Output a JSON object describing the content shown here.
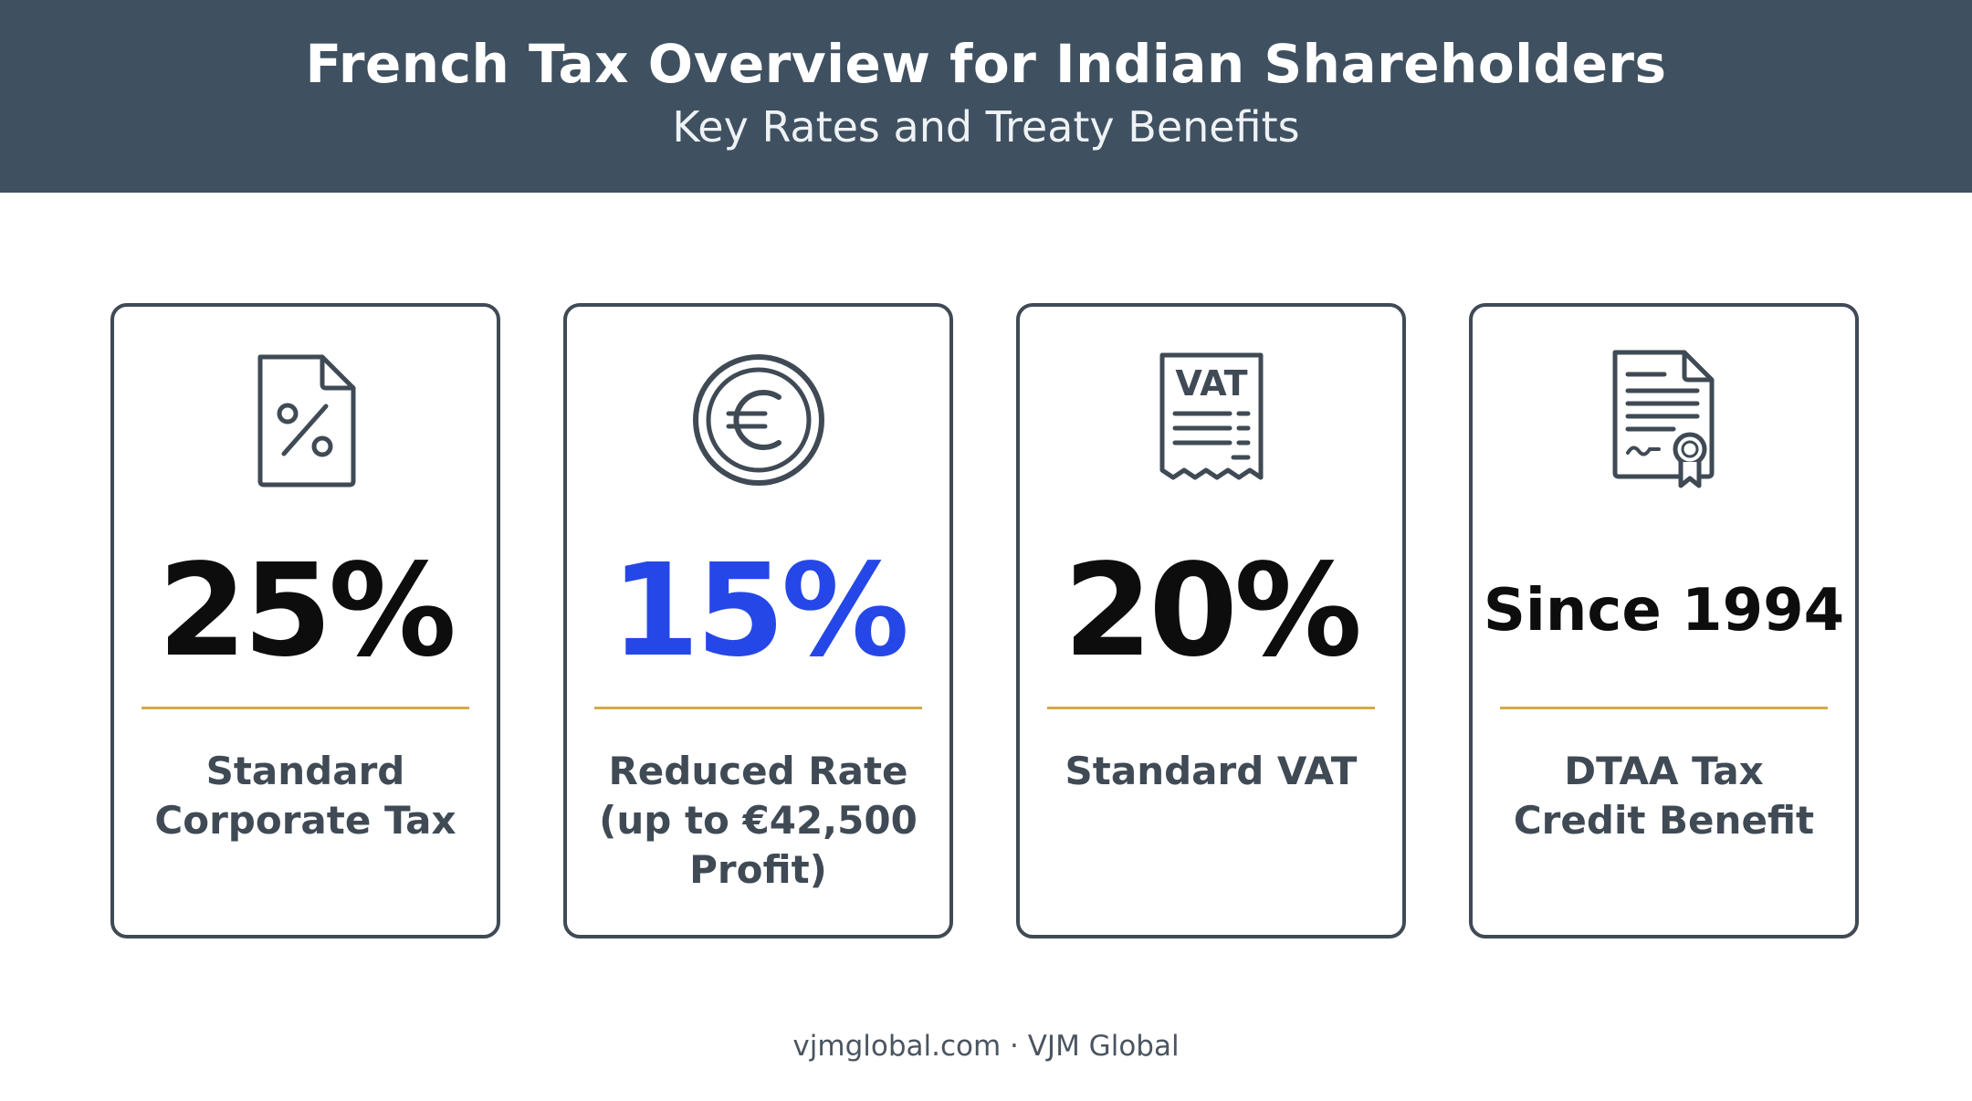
{
  "header": {
    "title": "French Tax Overview for Indian Shareholders",
    "subtitle": "Key Rates and Treaty Benefits"
  },
  "cards": [
    {
      "icon": "percent-document-icon",
      "value": "25%",
      "label_line1": "Standard",
      "label_line2": "Corporate Tax",
      "label_line3": ""
    },
    {
      "icon": "euro-coin-icon",
      "value": "15%",
      "label_line1": "Reduced Rate",
      "label_line2": "(up to €42,500",
      "label_line3": "Profit)"
    },
    {
      "icon": "vat-receipt-icon",
      "icon_text": "VAT",
      "value": "20%",
      "label_line1": "Standard VAT",
      "label_line2": "",
      "label_line3": ""
    },
    {
      "icon": "certificate-icon",
      "value": "Since 1994",
      "label_line1": "DTAA Tax",
      "label_line2": "Credit Benefit",
      "label_line3": ""
    }
  ],
  "footer": {
    "text": "vjmglobal.com · VJM Global"
  },
  "colors": {
    "header_bg": "#3f5060",
    "accent_blue": "#2547e8",
    "divider_gold": "#d4aa4a",
    "card_border": "#3f4a55"
  }
}
